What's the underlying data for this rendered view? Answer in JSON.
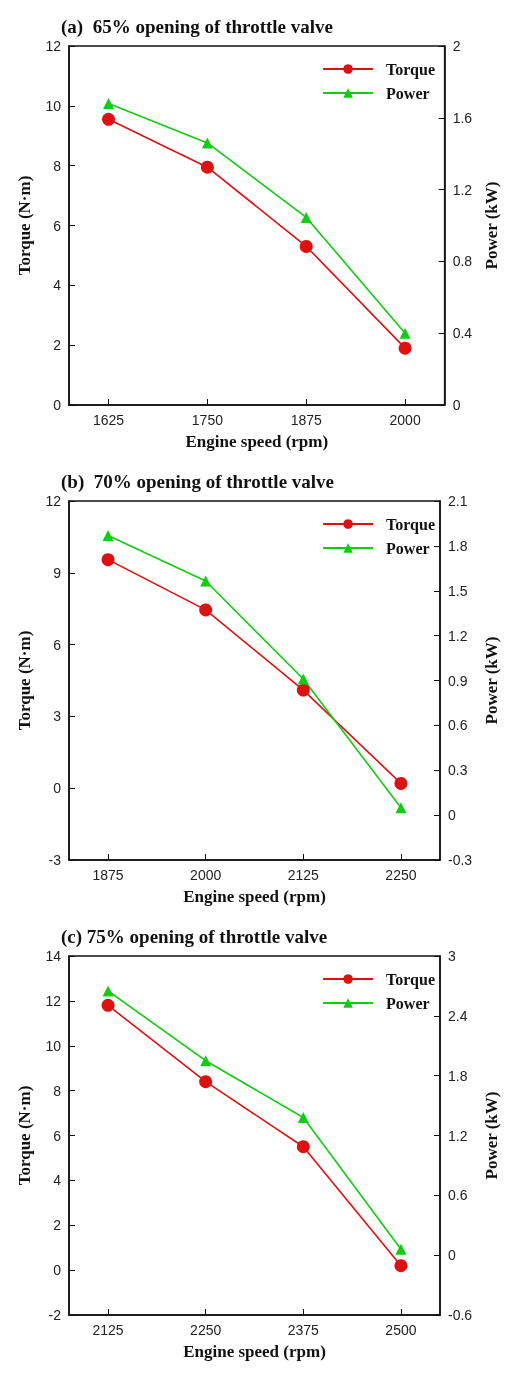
{
  "chart_data": [
    {
      "type": "line",
      "title": "(a)  65% opening of throttle valve",
      "xlabel": "Engine speed (rpm)",
      "ylabel": "Torque (N·m)",
      "y2label": "Power (kW)",
      "x": [
        1625,
        1750,
        1875,
        2000
      ],
      "xlim": [
        1575,
        2050
      ],
      "xticks": [
        1625,
        1750,
        1875,
        2000
      ],
      "ylim": [
        0,
        12
      ],
      "yticks": [
        0,
        2,
        4,
        6,
        8,
        10,
        12
      ],
      "y2lim": [
        0,
        2
      ],
      "y2ticks": [
        0,
        0.4,
        0.8,
        1.2,
        1.6,
        2
      ],
      "legend": "top right",
      "grid": false,
      "series": [
        {
          "name": "Torque",
          "color": "#dd1111",
          "marker": "circle",
          "values": [
            9.55,
            7.95,
            5.3,
            1.9
          ]
        },
        {
          "name": "Power",
          "color": "#11cc11",
          "marker": "triangle",
          "axis": "y2",
          "values": [
            1.68,
            1.46,
            1.045,
            0.4
          ]
        }
      ]
    },
    {
      "type": "line",
      "title": "(b)  70% opening of throttle valve",
      "xlabel": "Engine speed (rpm)",
      "ylabel": "Torque (N·m)",
      "y2label": "Power (kW)",
      "x": [
        1875,
        2000,
        2125,
        2250
      ],
      "xlim": [
        1825,
        2300
      ],
      "xticks": [
        1875,
        2000,
        2125,
        2250
      ],
      "ylim": [
        -3,
        12
      ],
      "yticks": [
        -3,
        0,
        3,
        6,
        9,
        12
      ],
      "y2lim": [
        -0.3,
        2.1
      ],
      "y2ticks": [
        -0.3,
        0,
        0.3,
        0.6,
        0.9,
        1.2,
        1.5,
        1.8,
        2.1
      ],
      "legend": "top right",
      "grid": false,
      "series": [
        {
          "name": "Torque",
          "color": "#dd1111",
          "marker": "circle",
          "values": [
            9.55,
            7.45,
            4.1,
            0.2
          ]
        },
        {
          "name": "Power",
          "color": "#11cc11",
          "marker": "triangle",
          "axis": "y2",
          "values": [
            1.87,
            1.565,
            0.91,
            0.05
          ]
        }
      ]
    },
    {
      "type": "line",
      "title": "(c) 75% opening of throttle valve",
      "xlabel": "Engine speed (rpm)",
      "ylabel": "Torque (N·m)",
      "y2label": "Power (kW)",
      "x": [
        2125,
        2250,
        2375,
        2500
      ],
      "xlim": [
        2075,
        2550
      ],
      "xticks": [
        2125,
        2250,
        2375,
        2500
      ],
      "ylim": [
        -2,
        14
      ],
      "yticks": [
        -2,
        0,
        2,
        4,
        6,
        8,
        10,
        12,
        14
      ],
      "y2lim": [
        -0.6,
        3
      ],
      "y2ticks": [
        -0.6,
        0,
        0.6,
        1.2,
        1.8,
        2.4,
        3
      ],
      "legend": "top right",
      "grid": false,
      "series": [
        {
          "name": "Torque",
          "color": "#dd1111",
          "marker": "circle",
          "values": [
            11.8,
            8.4,
            5.5,
            0.2
          ]
        },
        {
          "name": "Power",
          "color": "#11cc11",
          "marker": "triangle",
          "axis": "y2",
          "values": [
            2.65,
            1.95,
            1.38,
            0.06
          ]
        }
      ]
    }
  ]
}
